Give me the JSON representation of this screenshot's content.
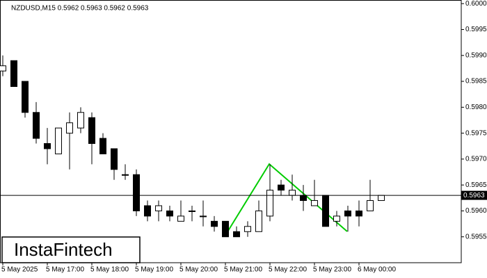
{
  "chart_data": {
    "type": "candlestick",
    "title": "NZDUSD,M15  0.5962 0.5963 0.5962 0.5963",
    "categories": [
      "5 May 2025",
      null,
      null,
      null,
      "5 May 17:00",
      null,
      null,
      null,
      "5 May 18:00",
      null,
      null,
      null,
      "5 May 19:00",
      null,
      null,
      null,
      "5 May 20:00",
      null,
      null,
      null,
      "5 May 21:00",
      null,
      null,
      null,
      "5 May 22:00",
      null,
      null,
      null,
      "5 May 23:00",
      null,
      null,
      null,
      "6 May 00:00",
      null,
      null
    ],
    "open": [
      0.5987,
      0.5989,
      0.5985,
      0.5979,
      0.5973,
      0.5971,
      0.5975,
      0.5976,
      0.5978,
      0.5974,
      0.5972,
      0.5967,
      0.5967,
      0.5961,
      0.596,
      0.596,
      0.5958,
      0.596,
      0.5959,
      0.5958,
      0.5958,
      0.5956,
      0.5956,
      0.5956,
      0.5959,
      0.5965,
      0.5963,
      0.5963,
      0.5961,
      0.5963,
      0.5958,
      0.596,
      0.596,
      0.596,
      0.5962
    ],
    "high": [
      0.599,
      0.5989,
      0.5985,
      0.5981,
      0.5976,
      0.5976,
      0.5979,
      0.598,
      0.5979,
      0.5975,
      0.5972,
      0.5969,
      0.5968,
      0.5962,
      0.5962,
      0.5961,
      0.5962,
      0.5961,
      0.5962,
      0.5959,
      0.5958,
      0.5957,
      0.5958,
      0.5962,
      0.5969,
      0.5966,
      0.5967,
      0.5965,
      0.5966,
      0.5963,
      0.596,
      0.5961,
      0.5962,
      0.5966,
      0.5963
    ],
    "low": [
      0.5986,
      0.5984,
      0.5978,
      0.5973,
      0.5969,
      0.5971,
      0.5968,
      0.5975,
      0.5969,
      0.5971,
      0.5966,
      0.5966,
      0.5959,
      0.5958,
      0.5958,
      0.5958,
      0.5958,
      0.5958,
      0.5957,
      0.5956,
      0.5955,
      0.5955,
      0.5955,
      0.5956,
      0.5958,
      0.5963,
      0.5962,
      0.596,
      0.5961,
      0.5957,
      0.5957,
      0.5956,
      0.5957,
      0.596,
      0.5962
    ],
    "close": [
      0.5988,
      0.5984,
      0.5979,
      0.5974,
      0.5972,
      0.5976,
      0.5977,
      0.5979,
      0.5973,
      0.5971,
      0.5968,
      0.5967,
      0.596,
      0.5959,
      0.5961,
      0.5959,
      0.5959,
      0.596,
      0.5959,
      0.5957,
      0.5955,
      0.5955,
      0.5957,
      0.596,
      0.5964,
      0.5964,
      0.5964,
      0.5962,
      0.5962,
      0.5957,
      0.5959,
      0.5959,
      0.5959,
      0.5962,
      0.5963
    ],
    "up_color": "#ffffff",
    "down_color": "#000000",
    "ylim": [
      0.595,
      0.60007
    ],
    "yticks": [
      0.5955,
      {
        "value": 0.596,
        "label": "0.5960"
      },
      0.5965,
      {
        "value": 0.597,
        "label": "0.5970"
      },
      0.5975,
      {
        "value": 0.598,
        "label": "0.5980"
      },
      0.5985,
      {
        "value": 0.599,
        "label": "0.5990"
      },
      0.5995,
      {
        "value": 0.6,
        "label": "0.6000"
      }
    ],
    "last_price": {
      "value": 0.5963,
      "label": "0.5963"
    }
  },
  "logo": "InstaFintech"
}
